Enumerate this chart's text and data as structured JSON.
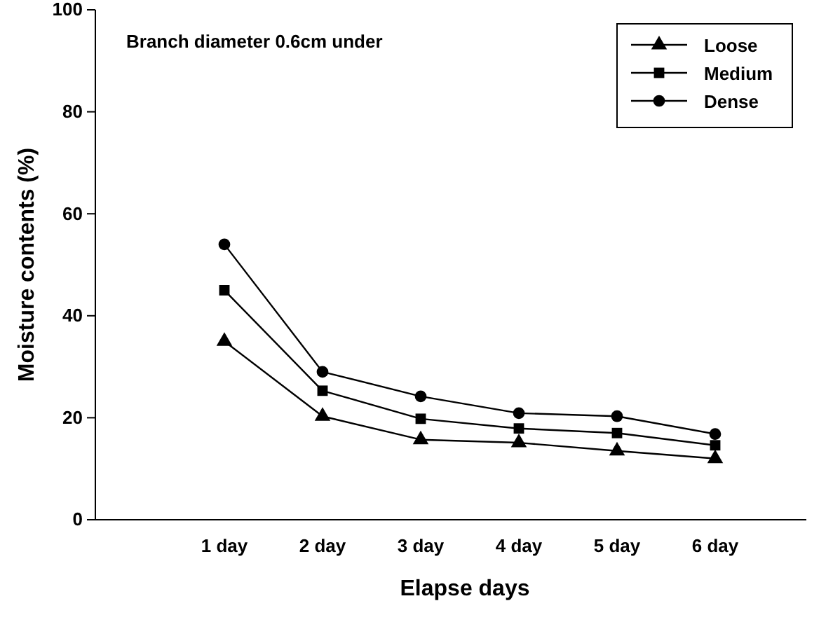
{
  "chart_data": {
    "type": "line",
    "xlabel": "Elapse days",
    "ylabel": "Moisture contents (%)",
    "categories": [
      "1 day",
      "2 day",
      "3 day",
      "4 day",
      "5 day",
      "6 day"
    ],
    "series": [
      {
        "name": "Loose",
        "color": "#000000",
        "marker": "triangle",
        "values": [
          35,
          20.3,
          15.7,
          15.1,
          13.5,
          12
        ]
      },
      {
        "name": "Medium",
        "color": "#000000",
        "marker": "square",
        "values": [
          45,
          25.3,
          19.8,
          17.9,
          17,
          14.6
        ]
      },
      {
        "name": "Dense",
        "color": "#000000",
        "marker": "circle",
        "values": [
          54,
          29,
          24.2,
          20.9,
          20.3,
          16.8
        ]
      }
    ],
    "ylim": [
      0,
      100
    ],
    "yticks": [
      0,
      20,
      40,
      60,
      80,
      100
    ],
    "grid": false,
    "legend": "top right",
    "annotations": [
      "Branch diameter 0.6cm under"
    ]
  }
}
